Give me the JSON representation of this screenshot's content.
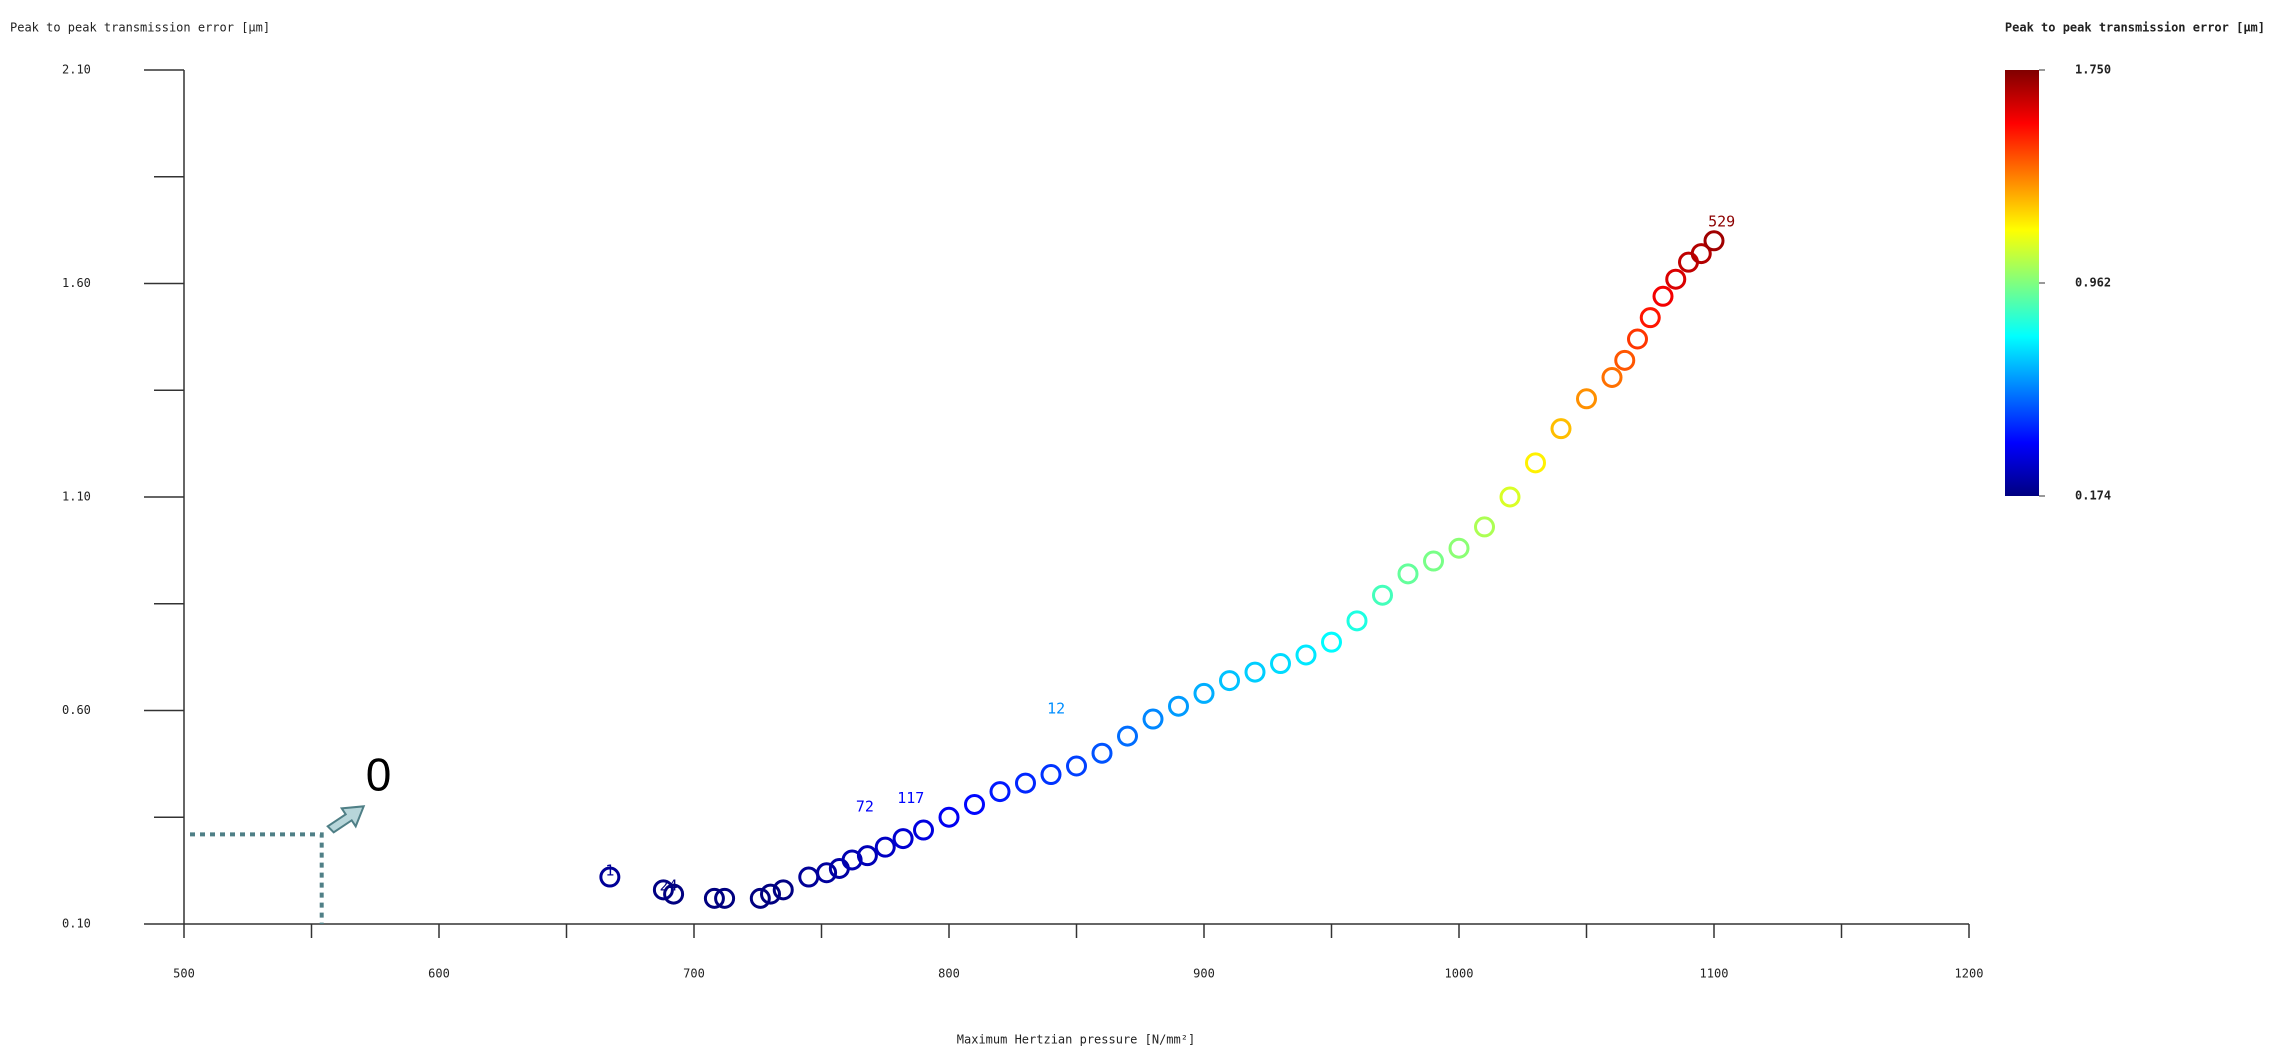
{
  "chart_data": {
    "type": "scatter",
    "ylabel": "Peak to peak transmission error [µm]",
    "xlabel": "Maximum Hertzian pressure [N/mm²]",
    "colorbar": {
      "title": "Peak to peak transmission error [µm]",
      "lim": [
        0.174,
        1.75
      ],
      "ticks": [
        {
          "value": 1.75,
          "label": "1.750"
        },
        {
          "value": 0.962,
          "label": "0.962"
        },
        {
          "value": 0.174,
          "label": "0.174"
        }
      ]
    },
    "xlim": [
      500,
      1200
    ],
    "xticks": [
      500,
      600,
      700,
      800,
      900,
      1000,
      1100,
      1200
    ],
    "xminor": [
      550,
      650,
      750,
      850,
      950,
      1050,
      1150
    ],
    "ylim": [
      0.1,
      2.1
    ],
    "yticks": [
      {
        "value": 0.1,
        "label": "0.10"
      },
      {
        "value": 0.6,
        "label": "0.60"
      },
      {
        "value": 1.1,
        "label": "1.10"
      },
      {
        "value": 1.6,
        "label": "1.60"
      },
      {
        "value": 2.1,
        "label": "2.10"
      }
    ],
    "yminor": [
      0.35,
      0.85,
      1.35,
      1.85
    ],
    "x": [
      667,
      688,
      692,
      708,
      712,
      726,
      730,
      735,
      745,
      752,
      757,
      762,
      768,
      775,
      782,
      790,
      800,
      810,
      820,
      830,
      840,
      850,
      860,
      870,
      880,
      890,
      900,
      910,
      920,
      930,
      940,
      950,
      960,
      970,
      980,
      990,
      1000,
      1010,
      1020,
      1030,
      1040,
      1050,
      1060,
      1065,
      1070,
      1075,
      1080,
      1085,
      1090,
      1095,
      1100
    ],
    "y": [
      0.21,
      0.18,
      0.17,
      0.16,
      0.16,
      0.16,
      0.17,
      0.18,
      0.21,
      0.22,
      0.23,
      0.25,
      0.26,
      0.28,
      0.3,
      0.32,
      0.35,
      0.38,
      0.41,
      0.43,
      0.45,
      0.47,
      0.5,
      0.54,
      0.58,
      0.61,
      0.64,
      0.67,
      0.69,
      0.71,
      0.73,
      0.76,
      0.81,
      0.87,
      0.92,
      0.95,
      0.98,
      1.03,
      1.1,
      1.18,
      1.26,
      1.33,
      1.38,
      1.42,
      1.47,
      1.52,
      1.57,
      1.61,
      1.65,
      1.67,
      1.7
    ],
    "point_labels": [
      {
        "text": "1",
        "x": 667,
        "y": 0.21
      },
      {
        "text": "24",
        "x": 690,
        "y": 0.175
      },
      {
        "text": "12",
        "x": 842,
        "y": 0.59
      },
      {
        "text": "72",
        "x": 767,
        "y": 0.36
      },
      {
        "text": "117",
        "x": 785,
        "y": 0.38
      },
      {
        "text": "529",
        "x": 1103,
        "y": 1.73
      }
    ],
    "reference_point": {
      "text": "0",
      "x": 554,
      "y": 0.31
    }
  }
}
